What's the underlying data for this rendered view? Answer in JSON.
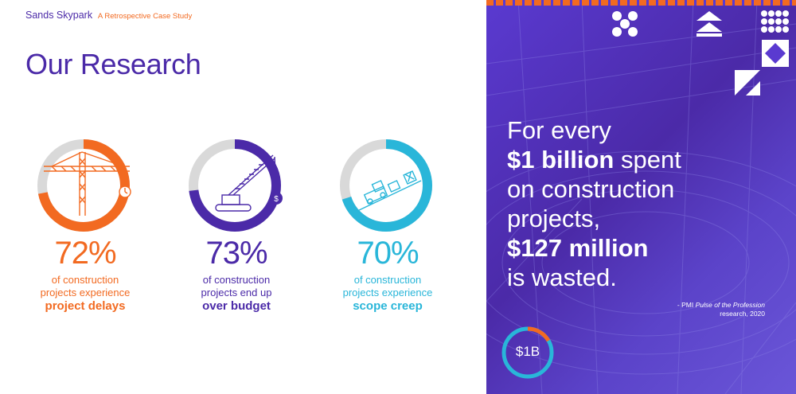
{
  "header": {
    "brand": "Sands Skypark",
    "subtitle": "A Retrospective Case Study"
  },
  "page_title": "Our Research",
  "stats": [
    {
      "percent": "72%",
      "value": 72,
      "desc_line1": "of construction",
      "desc_line2": "projects experience",
      "emphasis": "project delays",
      "color": "#f26a21",
      "icon": "tower-crane-clock-icon"
    },
    {
      "percent": "73%",
      "value": 73,
      "desc_line1": "of construction",
      "desc_line2": "projects end up",
      "emphasis": "over budget",
      "color": "#4b2aa8",
      "icon": "crawler-crane-dollar-icon"
    },
    {
      "percent": "70%",
      "value": 70,
      "desc_line1": "of construction",
      "desc_line2": "projects experience",
      "emphasis": "scope creep",
      "color": "#29b6d9",
      "icon": "bulldozer-icon"
    }
  ],
  "quote": {
    "line1": "For every",
    "bold1": "$1 billion",
    "line2_rest": " spent",
    "line3": "on construction",
    "line4": "projects,",
    "bold2": "$127 million",
    "line6": "is wasted."
  },
  "citation": {
    "line1_prefix": "- PMI ",
    "line1_italic": "Pulse of the Profession",
    "line2": "research, 2020"
  },
  "badge": {
    "label": "$1B"
  },
  "colors": {
    "purple": "#4b2aa8",
    "orange": "#f26a21",
    "cyan": "#29b6d9",
    "gray": "#d9d9d9"
  }
}
